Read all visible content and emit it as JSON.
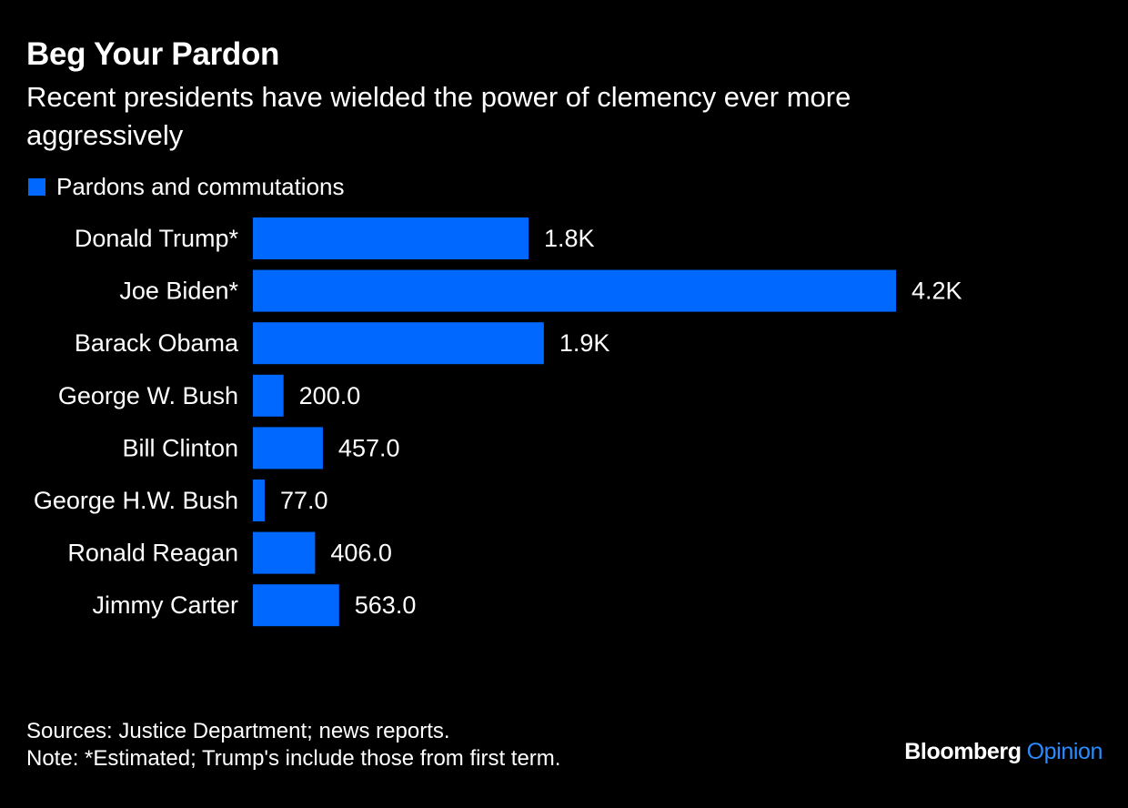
{
  "colors": {
    "background": "#000000",
    "text": "#ffffff",
    "bar": "#0068ff",
    "brand_accent": "#2a8cff"
  },
  "chart_data": {
    "type": "bar",
    "orientation": "horizontal",
    "title": "Beg Your Pardon",
    "subtitle": "Recent presidents have wielded the power of clemency ever more aggressively",
    "legend": {
      "placement": "top-left",
      "entries": [
        "Pardons and commutations"
      ]
    },
    "categories": [
      "Donald Trump*",
      "Joe Biden*",
      "Barack Obama",
      "George W. Bush",
      "Bill Clinton",
      "George H.W. Bush",
      "Ronald Reagan",
      "Jimmy Carter"
    ],
    "series": [
      {
        "name": "Pardons and commutations",
        "values": [
          1800,
          4200,
          1900,
          200,
          457,
          77,
          406,
          563
        ],
        "labels": [
          "1.8K",
          "4.2K",
          "1.9K",
          "200.0",
          "457.0",
          "77.0",
          "406.0",
          "563.0"
        ]
      }
    ],
    "xlim": [
      0,
      4200
    ],
    "grid": false,
    "xlabel": "",
    "ylabel": ""
  },
  "footer": {
    "sources": "Sources: Justice Department; news reports.",
    "note": "Note: *Estimated; Trump's include those from first term."
  },
  "brand": {
    "name": "Bloomberg",
    "section": "Opinion"
  }
}
